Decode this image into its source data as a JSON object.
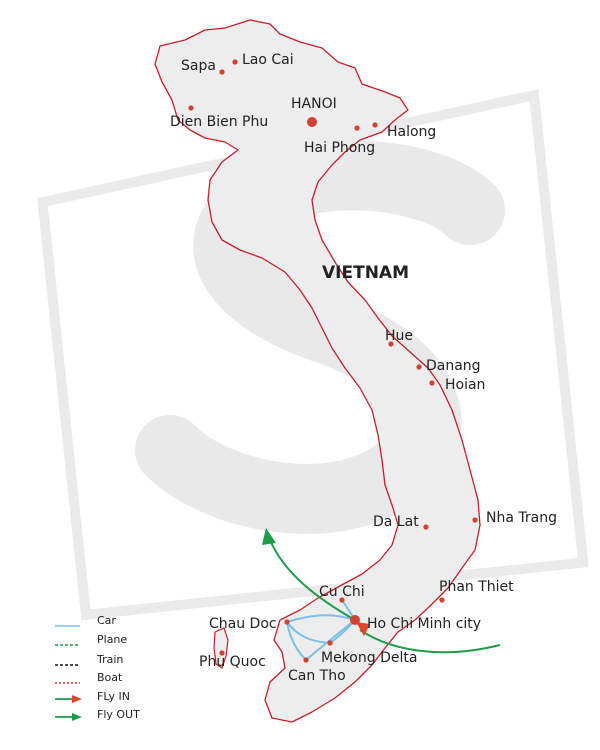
{
  "map": {
    "country": "VIETNAM",
    "capital": "HANOI",
    "cities": {
      "sapa": "Sapa",
      "lao_cai": "Lao Cai",
      "dien_bien_phu": "Dien Bien Phu",
      "halong": "Halong",
      "hai_phong": "Hai Phong",
      "hue": "Hue",
      "danang": "Danang",
      "hoian": "Hoian",
      "da_lat": "Da Lat",
      "nha_trang": "Nha Trang",
      "phan_thiet": "Phan Thiet",
      "cu_chi": "Cu Chi",
      "ho_chi_minh": "Ho Chi Minh city",
      "chau_doc": "Chau Doc",
      "phu_quoc": "Phu Quoc",
      "mekong_delta": "Mekong Delta",
      "can_tho": "Can Tho"
    },
    "colors": {
      "land": "#ededed",
      "border": "#c8202a",
      "city_dot": "#d1422f",
      "car_route": "#7dc0e8",
      "fly_arrow": "#1e9c47",
      "watermark": "#d6d6d6"
    }
  },
  "legend": {
    "car": "Car",
    "plane": "Plane",
    "train": "Train",
    "boat": "Boat",
    "fly_in": "FLy IN",
    "fly_out": "Fly OUT"
  }
}
